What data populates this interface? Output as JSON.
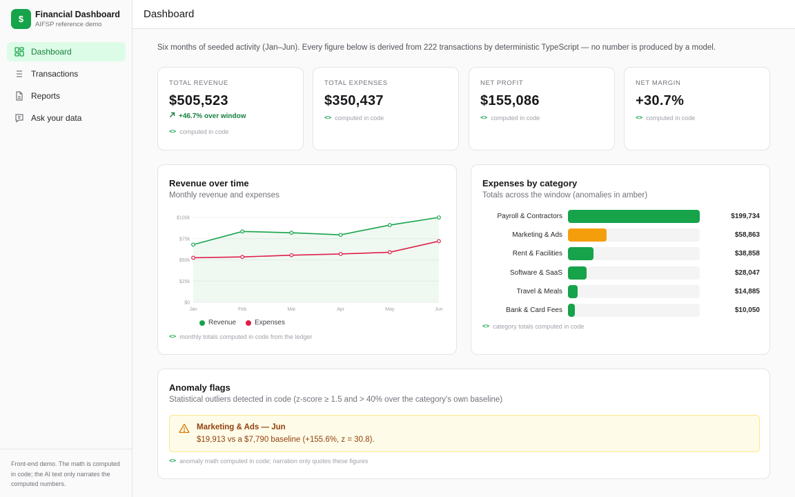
{
  "app": {
    "logo": "$",
    "title": "Financial Dashboard",
    "subtitle": "AIFSP reference demo"
  },
  "nav": [
    {
      "label": "Dashboard",
      "icon": "dashboard-icon",
      "active": true
    },
    {
      "label": "Transactions",
      "icon": "list-icon"
    },
    {
      "label": "Reports",
      "icon": "document-icon"
    },
    {
      "label": "Ask your data",
      "icon": "chat-icon"
    }
  ],
  "sidebar_footer": "Front-end demo. The math is computed in code; the AI text only narrates the computed numbers.",
  "header": {
    "title": "Dashboard"
  },
  "intro": "Six months of seeded activity (Jan–Jun). Every figure below is derived from 222 transactions by deterministic TypeScript — no number is produced by a model.",
  "kpis": [
    {
      "label": "TOTAL REVENUE",
      "value": "$505,523",
      "trend": "+46.7% over window",
      "note": "computed in code"
    },
    {
      "label": "TOTAL EXPENSES",
      "value": "$350,437",
      "note": "computed in code"
    },
    {
      "label": "NET PROFIT",
      "value": "$155,086",
      "note": "computed in code"
    },
    {
      "label": "NET MARGIN",
      "value": "+30.7%",
      "note": "computed in code"
    }
  ],
  "revenue_card": {
    "title": "Revenue over time",
    "subtitle": "Monthly revenue and expenses",
    "note": "monthly totals computed in code from the ledger"
  },
  "expenses_card": {
    "title": "Expenses by category",
    "subtitle": "Totals across the window (anomalies in amber)",
    "note": "category totals computed in code",
    "categories": [
      {
        "label": "Payroll & Contractors",
        "amount": 199734,
        "display": "$199,734",
        "anomaly": false
      },
      {
        "label": "Marketing & Ads",
        "amount": 58863,
        "display": "$58,863",
        "anomaly": true
      },
      {
        "label": "Rent & Facilities",
        "amount": 38858,
        "display": "$38,858",
        "anomaly": false
      },
      {
        "label": "Software & SaaS",
        "amount": 28047,
        "display": "$28,047",
        "anomaly": false
      },
      {
        "label": "Travel & Meals",
        "amount": 14885,
        "display": "$14,885",
        "anomaly": false
      },
      {
        "label": "Bank & Card Fees",
        "amount": 10050,
        "display": "$10,050",
        "anomaly": false
      }
    ]
  },
  "anomaly_card": {
    "title": "Anomaly flags",
    "subtitle": "Statistical outliers detected in code (z-score ≥ 1.5 and > 40% over the category's own baseline)",
    "flag_title": "Marketing & Ads — Jun",
    "flag_text": "$19,913 vs a $7,790 baseline (+155.6%, z = 30.8).",
    "note": "anomaly math computed in code; narration only quotes these figures"
  },
  "colors": {
    "accent": "#16a34a",
    "revenue": "#16a34a",
    "expenses": "#e11d48",
    "anomaly": "#f59e0b"
  },
  "chart_data": {
    "type": "line",
    "x": [
      "Jan",
      "Feb",
      "Mar",
      "Apr",
      "May",
      "Jun"
    ],
    "yticks": [
      "$0",
      "$25k",
      "$50k",
      "$75k",
      "$100k"
    ],
    "ylim": [
      0,
      100000
    ],
    "series": [
      {
        "name": "Revenue",
        "color": "#16a34a",
        "values": [
          68000,
          83500,
          82000,
          79500,
          91000,
          100000
        ]
      },
      {
        "name": "Expenses",
        "color": "#e11d48",
        "values": [
          52500,
          53500,
          55500,
          57000,
          59000,
          72000
        ]
      }
    ],
    "grid": true,
    "legend": "bottom"
  }
}
